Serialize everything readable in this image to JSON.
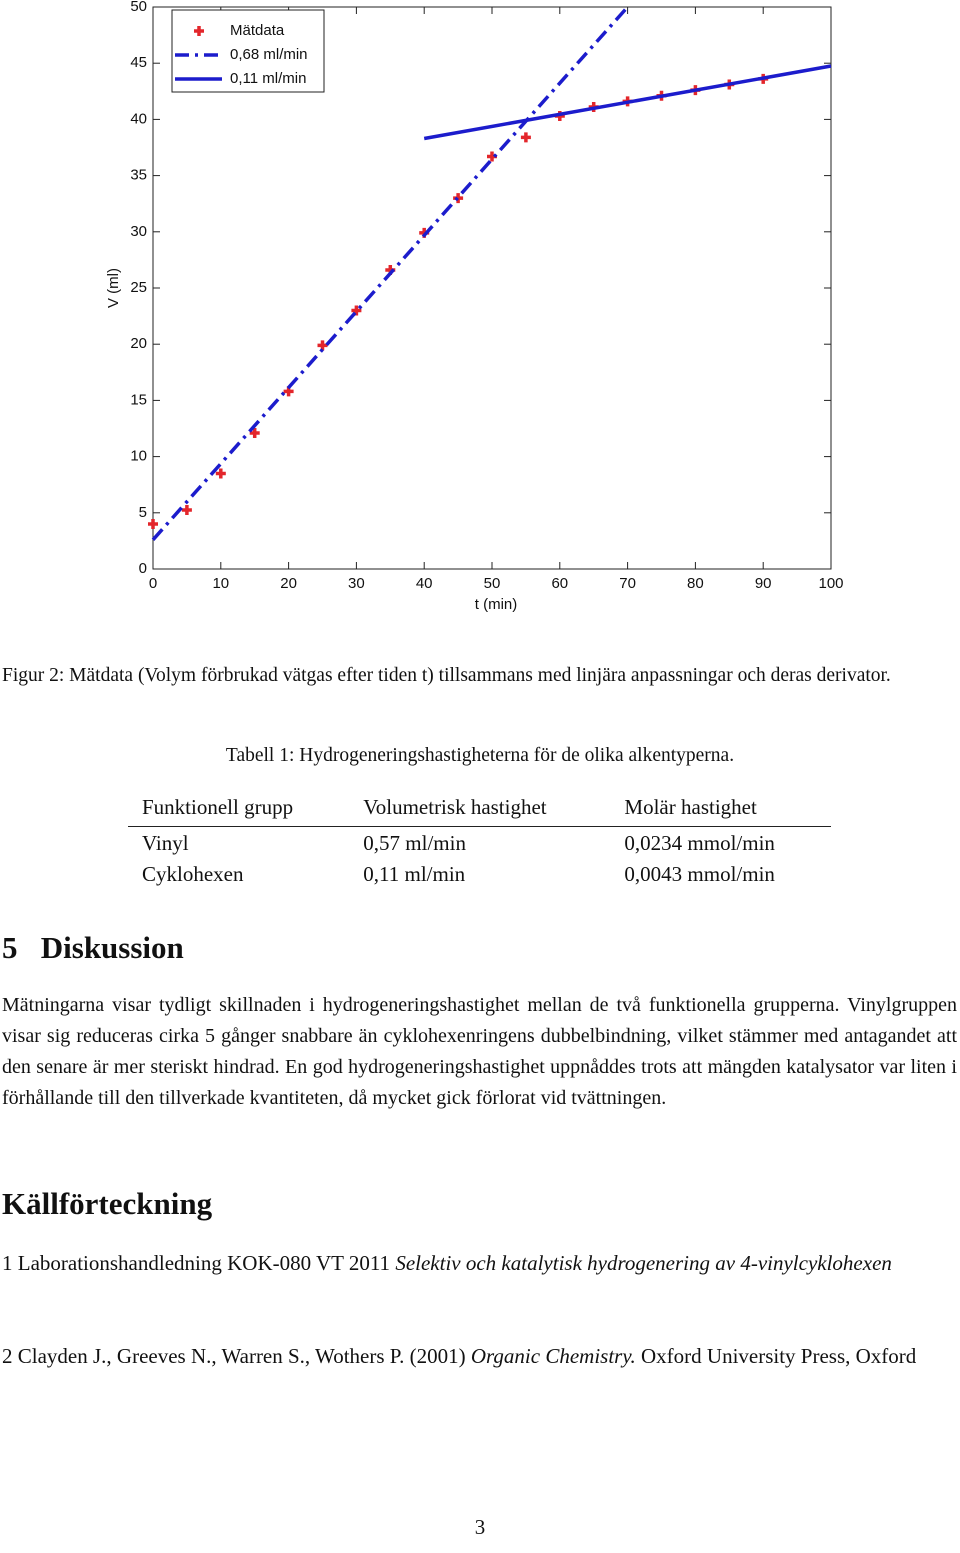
{
  "chart_data": {
    "type": "line",
    "xlabel": "t (min)",
    "ylabel": "V (ml)",
    "xlim": [
      0,
      100
    ],
    "xticks": [
      0,
      10,
      20,
      30,
      40,
      50,
      60,
      70,
      80,
      90,
      100
    ],
    "ylim": [
      0,
      50
    ],
    "yticks": [
      0,
      5,
      10,
      15,
      20,
      25,
      30,
      35,
      40,
      45,
      50
    ],
    "legend": "upper left",
    "series": [
      {
        "name": "Mätdata",
        "color": "#e3262b",
        "marker": "plus",
        "line": "none",
        "x": [
          0,
          5,
          10,
          15,
          20,
          25,
          30,
          35,
          40,
          45,
          50,
          55,
          60,
          65,
          70,
          75,
          80,
          85,
          90
        ],
        "values": [
          4.0,
          5.25,
          8.5,
          12.1,
          15.8,
          19.9,
          23.0,
          26.6,
          29.9,
          33.0,
          36.7,
          38.4,
          40.3,
          41.1,
          41.6,
          42.1,
          42.6,
          43.1,
          43.6
        ]
      },
      {
        "name": "0,68 ml/min",
        "color": "#1c1ccc",
        "marker": "none",
        "line": "dashdot",
        "x": [
          0,
          70
        ],
        "values": [
          2.6,
          50
        ]
      },
      {
        "name": "0,11 ml/min",
        "color": "#1c1ccc",
        "marker": "none",
        "line": "solid",
        "x": [
          40,
          100
        ],
        "values": [
          38.3,
          44.75
        ]
      }
    ]
  },
  "figure_caption": "Figur 2: Mätdata (Volym förbrukad vätgas efter tiden t) tillsammans med linjära anpassningar och deras derivator.",
  "table": {
    "caption": "Tabell 1: Hydrogeneringshastigheterna för de olika alkentyperna.",
    "header": [
      "Funktionell grupp",
      "Volumetrisk hastighet",
      "Molär hastighet"
    ],
    "rows": [
      [
        "Vinyl",
        "0,57 ml/min",
        "0,0234 mmol/min"
      ],
      [
        "Cyklohexen",
        "0,11 ml/min",
        "0,0043 mmol/min"
      ]
    ]
  },
  "section": {
    "number": "5",
    "title": "Diskussion",
    "text": "Mätningarna visar tydligt skillnaden i hydrogeneringshastighet mellan de två funktionella grupperna. Vinylgruppen visar sig reduceras cirka 5 gånger snabbare än cyklohexenringens dubbelbindning, vilket stämmer med antagandet att den senare är mer steriskt hindrad. En god hydrogeneringshastighet uppnåddes trots att mängden katalysator var liten i förhållande till den tillverkade kvantiteten, då mycket gick förlorat vid tvättningen."
  },
  "references": {
    "title": "Källförteckning",
    "items": [
      {
        "number": "1",
        "text": "Laborationshandledning KOK-080 VT 2011",
        "title": "Selektiv och katalytisk hydrogenering av 4-vinylcyklohexen"
      },
      {
        "number": "2",
        "text": "Clayden J., Greeves N., Warren S., Wothers P. (2001)",
        "title": "Organic Chemistry.",
        "after": "Oxford University Press, Oxford"
      }
    ]
  },
  "page_number": "3"
}
